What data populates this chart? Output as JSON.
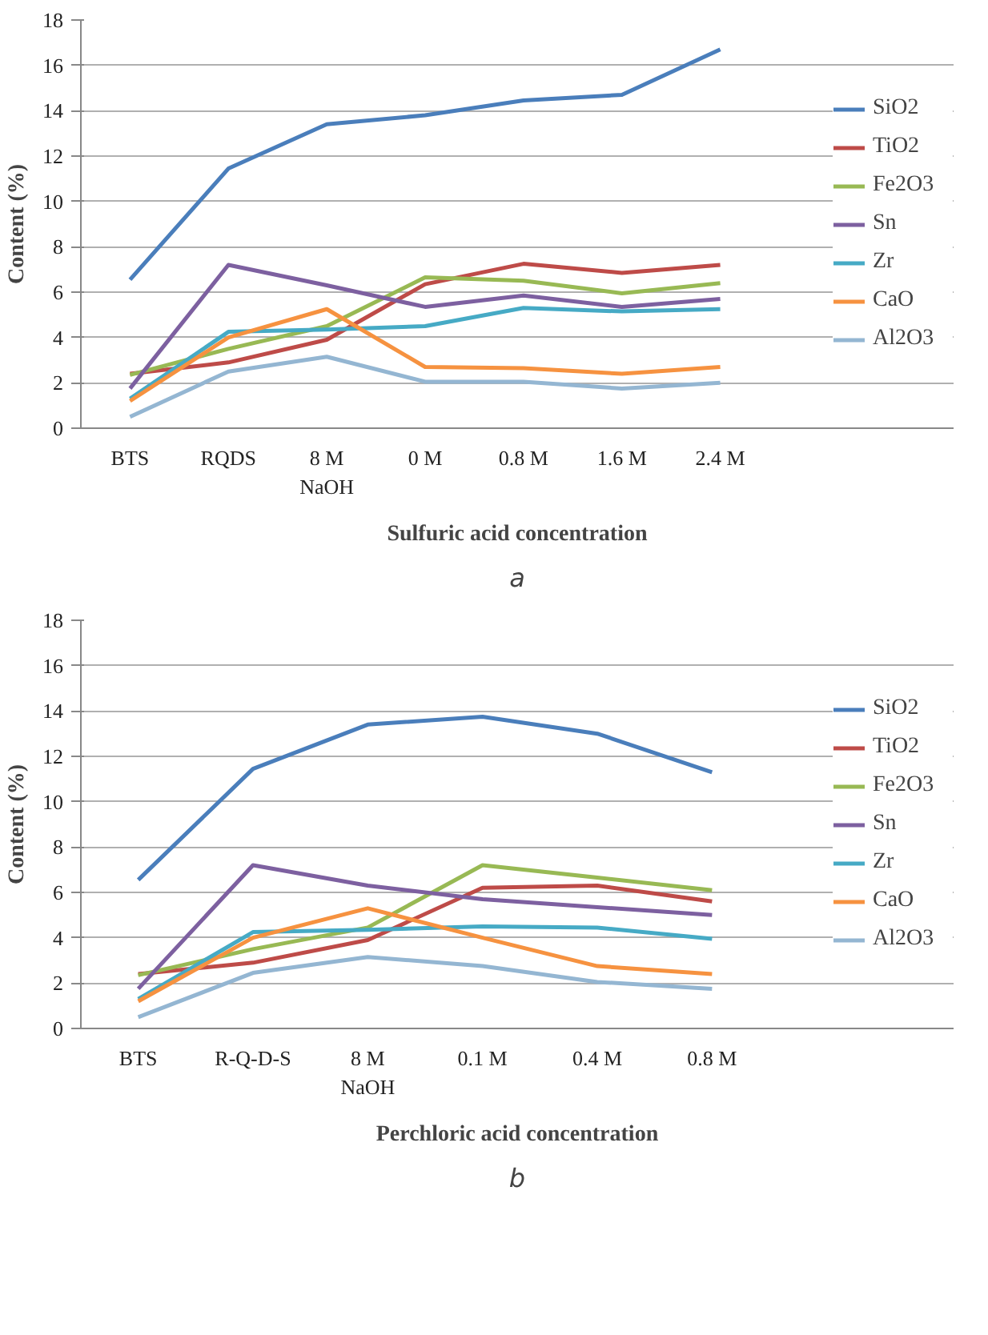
{
  "chart_data": [
    {
      "type": "line",
      "xlabel": "Sulfuric acid concentration",
      "ylabel": "Content (%)",
      "categories": [
        "BTS",
        "RQDS",
        "8 M\nNaOH",
        "0 M",
        "0.8 M",
        "1.6 M",
        "2.4 M"
      ],
      "ylim": [
        0,
        18
      ],
      "yticks": [
        0,
        2,
        4,
        6,
        8,
        10,
        12,
        14,
        16,
        18
      ],
      "grid": "y",
      "legend": "right",
      "annotations": [
        "a"
      ],
      "series": [
        {
          "name": "SiO2",
          "color": "#4a7ebb",
          "values": [
            6.55,
            11.45,
            13.4,
            13.8,
            14.45,
            14.7,
            16.7
          ]
        },
        {
          "name": "TiO2",
          "color": "#be4b48",
          "values": [
            2.4,
            2.9,
            3.9,
            6.35,
            7.25,
            6.85,
            7.2
          ]
        },
        {
          "name": "Fe2O3",
          "color": "#98b954",
          "values": [
            2.35,
            3.5,
            4.5,
            6.65,
            6.5,
            5.95,
            6.4
          ]
        },
        {
          "name": "Sn",
          "color": "#7d60a0",
          "values": [
            1.75,
            7.2,
            6.3,
            5.35,
            5.85,
            5.35,
            5.7
          ]
        },
        {
          "name": "Zr",
          "color": "#46aac5",
          "values": [
            1.3,
            4.25,
            4.35,
            4.5,
            5.3,
            5.15,
            5.25
          ]
        },
        {
          "name": "CaO",
          "color": "#f69240",
          "values": [
            1.2,
            4.0,
            5.25,
            2.7,
            2.65,
            2.4,
            2.7
          ]
        },
        {
          "name": "Al2O3",
          "color": "#94b6d2",
          "values": [
            0.5,
            2.5,
            3.15,
            2.05,
            2.05,
            1.75,
            2.0
          ]
        }
      ]
    },
    {
      "type": "line",
      "xlabel": "Perchloric acid concentration",
      "ylabel": "Content (%)",
      "categories": [
        "BTS",
        "R-Q-D-S",
        "8 M\nNaOH",
        "0.1 M",
        "0.4 M",
        "0.8 M"
      ],
      "ylim": [
        0,
        18
      ],
      "yticks": [
        0,
        2,
        4,
        6,
        8,
        10,
        12,
        14,
        16,
        18
      ],
      "grid": "y",
      "legend": "right",
      "annotations": [
        "b"
      ],
      "series": [
        {
          "name": "SiO2",
          "color": "#4a7ebb",
          "values": [
            6.55,
            11.45,
            13.4,
            13.75,
            13.0,
            11.3
          ]
        },
        {
          "name": "TiO2",
          "color": "#be4b48",
          "values": [
            2.4,
            2.9,
            3.9,
            6.2,
            6.3,
            5.6
          ]
        },
        {
          "name": "Fe2O3",
          "color": "#98b954",
          "values": [
            2.35,
            3.5,
            4.45,
            7.2,
            6.65,
            6.1
          ]
        },
        {
          "name": "Sn",
          "color": "#7d60a0",
          "values": [
            1.75,
            7.2,
            6.3,
            5.7,
            5.35,
            5.0
          ]
        },
        {
          "name": "Zr",
          "color": "#46aac5",
          "values": [
            1.3,
            4.25,
            4.35,
            4.5,
            4.45,
            3.95
          ]
        },
        {
          "name": "CaO",
          "color": "#f69240",
          "values": [
            1.2,
            4.0,
            5.3,
            4.0,
            2.75,
            2.4
          ]
        },
        {
          "name": "Al2O3",
          "color": "#94b6d2",
          "values": [
            0.5,
            2.45,
            3.15,
            2.75,
            2.05,
            1.75
          ]
        }
      ]
    }
  ]
}
